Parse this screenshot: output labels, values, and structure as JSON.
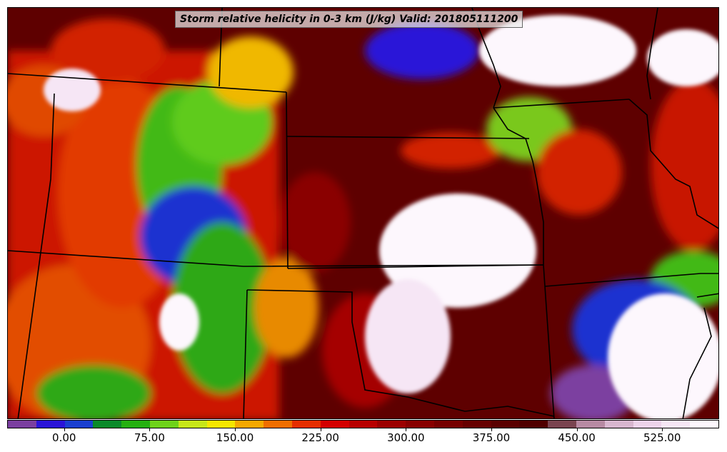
{
  "title": "Storm relative helicity in 0-3 km (J/kg) Valid: 201805111200",
  "colorbar": {
    "colors": [
      "#7b3fa0",
      "#2a14d8",
      "#1a3fd0",
      "#0a8a2a",
      "#25b010",
      "#6ed21a",
      "#c7e619",
      "#f6e600",
      "#f5a800",
      "#f06e00",
      "#e62e00",
      "#d40000",
      "#b80000",
      "#9c0000",
      "#880000",
      "#760000",
      "#660000",
      "#5a0000",
      "#500000",
      "#7a4450",
      "#b78aa3",
      "#d8b6cf",
      "#edd3ea",
      "#f6e6f5",
      "#fdf7fd"
    ],
    "vmin": -50,
    "vmax": 575,
    "tick_values": [
      0,
      75,
      150,
      225,
      300,
      375,
      450,
      525
    ],
    "tick_labels": [
      "0.00",
      "75.00",
      "150.00",
      "225.00",
      "300.00",
      "375.00",
      "450.00",
      "525.00"
    ]
  }
}
